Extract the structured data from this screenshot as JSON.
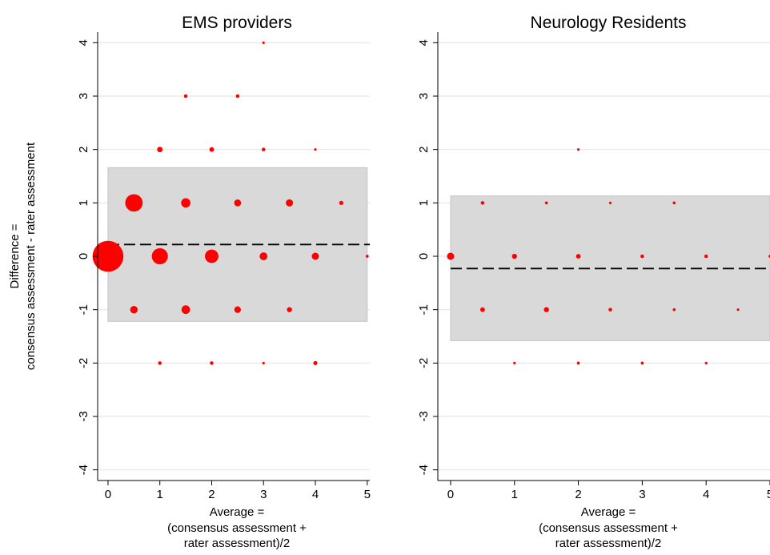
{
  "shared_ylabel": [
    "Difference =",
    "consensus assessment - rater assessment"
  ],
  "chart_data": [
    {
      "type": "scatter",
      "title": "EMS providers",
      "xlabel": [
        "Average =",
        "(consensus assessment +",
        "rater assessment)/2"
      ],
      "xlim": [
        -0.2,
        5.05
      ],
      "ylim": [
        -4.2,
        4.2
      ],
      "xticks": [
        0,
        1,
        2,
        3,
        4,
        5
      ],
      "yticks": [
        -4,
        -3,
        -2,
        -1,
        0,
        1,
        2,
        3,
        4
      ],
      "grid": true,
      "point_color": "#ff0000",
      "band_color": "#d9d9d9",
      "mean_difference": 0.22,
      "limits_of_agreement": [
        -1.22,
        1.66
      ],
      "band_x_range": [
        0,
        5
      ],
      "points": [
        {
          "x": 3,
          "y": 4,
          "weight": 1
        },
        {
          "x": 1.5,
          "y": 3,
          "weight": 3
        },
        {
          "x": 2.5,
          "y": 3,
          "weight": 3
        },
        {
          "x": 1,
          "y": 2,
          "weight": 7
        },
        {
          "x": 2,
          "y": 2,
          "weight": 5
        },
        {
          "x": 3,
          "y": 2,
          "weight": 3
        },
        {
          "x": 4,
          "y": 2,
          "weight": 1
        },
        {
          "x": 0.5,
          "y": 1,
          "weight": 70
        },
        {
          "x": 1.5,
          "y": 1,
          "weight": 20
        },
        {
          "x": 2.5,
          "y": 1,
          "weight": 11
        },
        {
          "x": 3.5,
          "y": 1,
          "weight": 12
        },
        {
          "x": 4.5,
          "y": 1,
          "weight": 4
        },
        {
          "x": 0,
          "y": 0,
          "weight": 220
        },
        {
          "x": 1,
          "y": 0,
          "weight": 60
        },
        {
          "x": 2,
          "y": 0,
          "weight": 42
        },
        {
          "x": 3,
          "y": 0,
          "weight": 14
        },
        {
          "x": 4,
          "y": 0,
          "weight": 12
        },
        {
          "x": 5,
          "y": 0,
          "weight": 2
        },
        {
          "x": 0.5,
          "y": -1,
          "weight": 13
        },
        {
          "x": 1.5,
          "y": -1,
          "weight": 17
        },
        {
          "x": 2.5,
          "y": -1,
          "weight": 10
        },
        {
          "x": 3.5,
          "y": -1,
          "weight": 6
        },
        {
          "x": 1,
          "y": -2,
          "weight": 3
        },
        {
          "x": 2,
          "y": -2,
          "weight": 3
        },
        {
          "x": 3,
          "y": -2,
          "weight": 1
        },
        {
          "x": 4,
          "y": -2,
          "weight": 4
        }
      ]
    },
    {
      "type": "scatter",
      "title": "Neurology Residents",
      "xlabel": [
        "Average =",
        "(consensus assessment +",
        "rater assessment)/2"
      ],
      "xlim": [
        -0.2,
        5.0
      ],
      "ylim": [
        -4.2,
        4.2
      ],
      "xticks": [
        0,
        1,
        2,
        3,
        4,
        5
      ],
      "yticks": [
        -4,
        -3,
        -2,
        -1,
        0,
        1,
        2,
        3,
        4
      ],
      "grid": true,
      "point_color": "#ff0000",
      "band_color": "#d9d9d9",
      "mean_difference": -0.23,
      "limits_of_agreement": [
        -1.58,
        1.13
      ],
      "band_x_range": [
        0,
        5
      ],
      "points": [
        {
          "x": 2,
          "y": 2,
          "weight": 1
        },
        {
          "x": 0.5,
          "y": 1,
          "weight": 3
        },
        {
          "x": 1.5,
          "y": 1,
          "weight": 2
        },
        {
          "x": 2.5,
          "y": 1,
          "weight": 1
        },
        {
          "x": 3.5,
          "y": 1,
          "weight": 2
        },
        {
          "x": 0,
          "y": 0,
          "weight": 12
        },
        {
          "x": 1,
          "y": 0,
          "weight": 6
        },
        {
          "x": 2,
          "y": 0,
          "weight": 5
        },
        {
          "x": 3,
          "y": 0,
          "weight": 3
        },
        {
          "x": 4,
          "y": 0,
          "weight": 3
        },
        {
          "x": 5,
          "y": 0,
          "weight": 2
        },
        {
          "x": 0.5,
          "y": -1,
          "weight": 5
        },
        {
          "x": 1.5,
          "y": -1,
          "weight": 6
        },
        {
          "x": 2.5,
          "y": -1,
          "weight": 3
        },
        {
          "x": 3.5,
          "y": -1,
          "weight": 2
        },
        {
          "x": 4.5,
          "y": -1,
          "weight": 1
        },
        {
          "x": 1,
          "y": -2,
          "weight": 1
        },
        {
          "x": 2,
          "y": -2,
          "weight": 2
        },
        {
          "x": 3,
          "y": -2,
          "weight": 2
        },
        {
          "x": 4,
          "y": -2,
          "weight": 1
        }
      ]
    }
  ]
}
